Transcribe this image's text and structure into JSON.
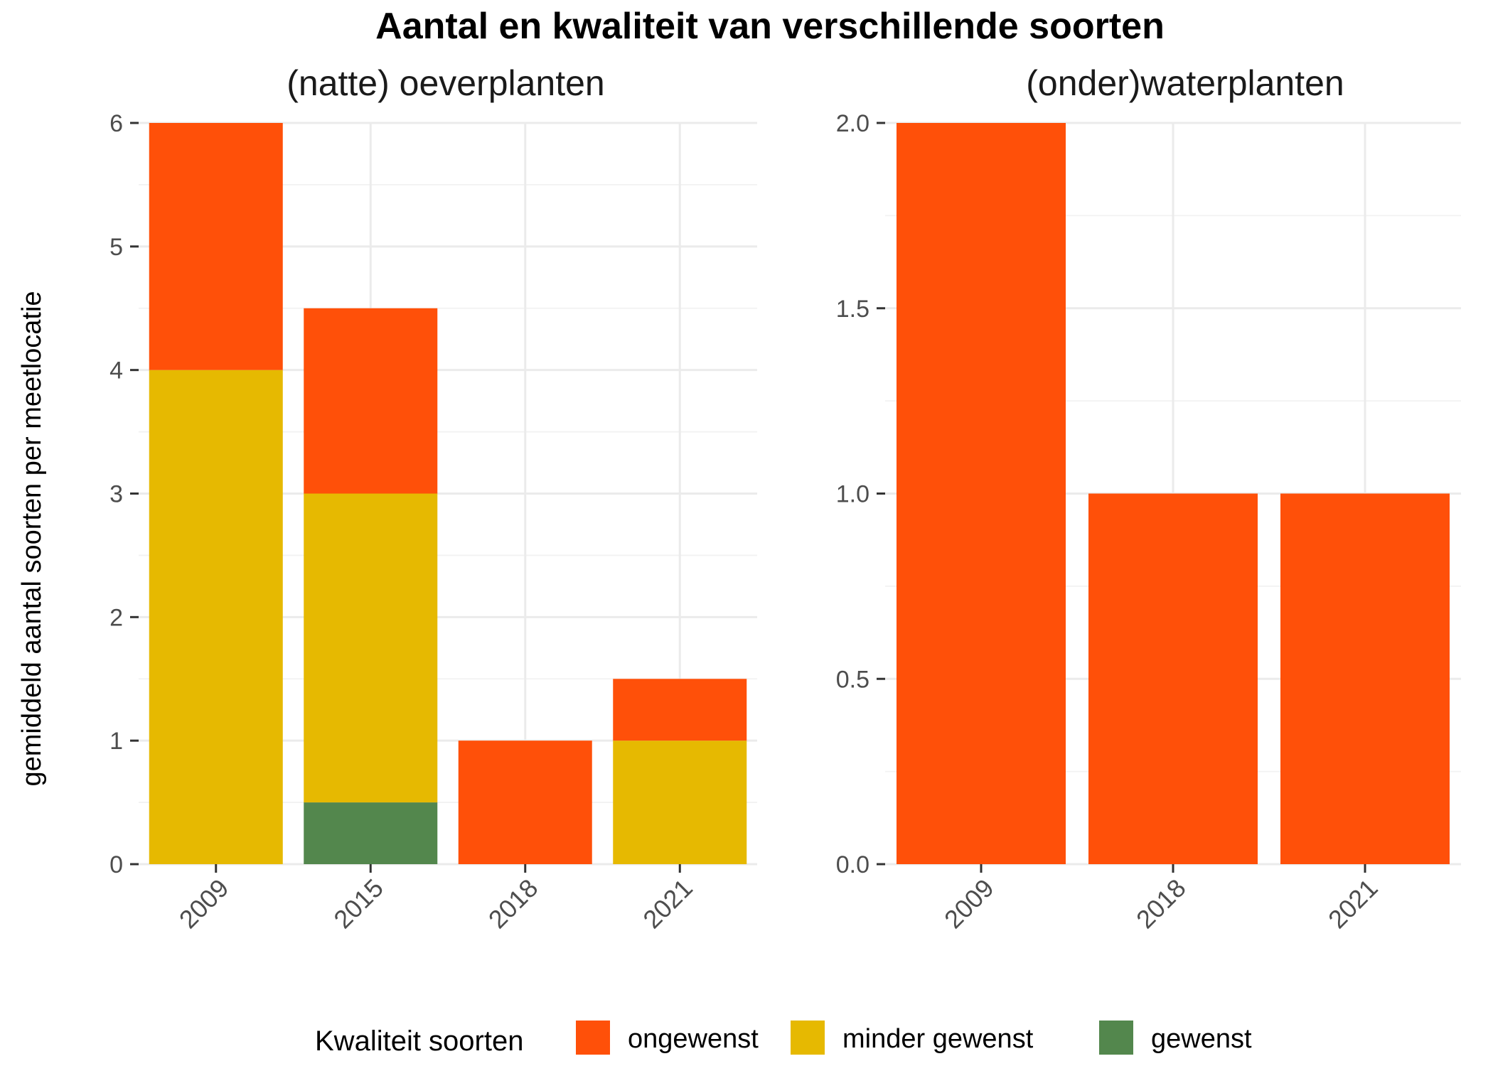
{
  "title": "Aantal en kwaliteit van verschillende soorten",
  "ylabel": "gemiddeld aantal soorten per meetlocatie",
  "legend": {
    "title": "Kwaliteit soorten",
    "position": "bottom",
    "items": [
      {
        "label": "ongewenst",
        "color": "#FF5009"
      },
      {
        "label": "minder gewenst",
        "color": "#E6B901"
      },
      {
        "label": "gewenst",
        "color": "#53874D"
      }
    ]
  },
  "chart_data": [
    {
      "type": "bar",
      "stacked": true,
      "title": "(natte) oeverplanten",
      "categories": [
        "2009",
        "2015",
        "2018",
        "2021"
      ],
      "ylim": [
        0,
        6
      ],
      "yticks": [
        "0",
        "1",
        "2",
        "3",
        "4",
        "5",
        "6"
      ],
      "grid": true,
      "series": [
        {
          "name": "gewenst",
          "color": "#53874D",
          "values": [
            0,
            0.5,
            0,
            0
          ]
        },
        {
          "name": "minder gewenst",
          "color": "#E6B901",
          "values": [
            4,
            2.5,
            0,
            1
          ]
        },
        {
          "name": "ongewenst",
          "color": "#FF5009",
          "values": [
            2,
            1.5,
            1,
            0.5
          ]
        }
      ]
    },
    {
      "type": "bar",
      "stacked": true,
      "title": "(onder)waterplanten",
      "categories": [
        "2009",
        "2018",
        "2021"
      ],
      "ylim": [
        0,
        2
      ],
      "yticks": [
        "0.0",
        "0.5",
        "1.0",
        "1.5",
        "2.0"
      ],
      "grid": true,
      "series": [
        {
          "name": "ongewenst",
          "color": "#FF5009",
          "values": [
            2,
            1,
            1
          ]
        }
      ]
    }
  ]
}
